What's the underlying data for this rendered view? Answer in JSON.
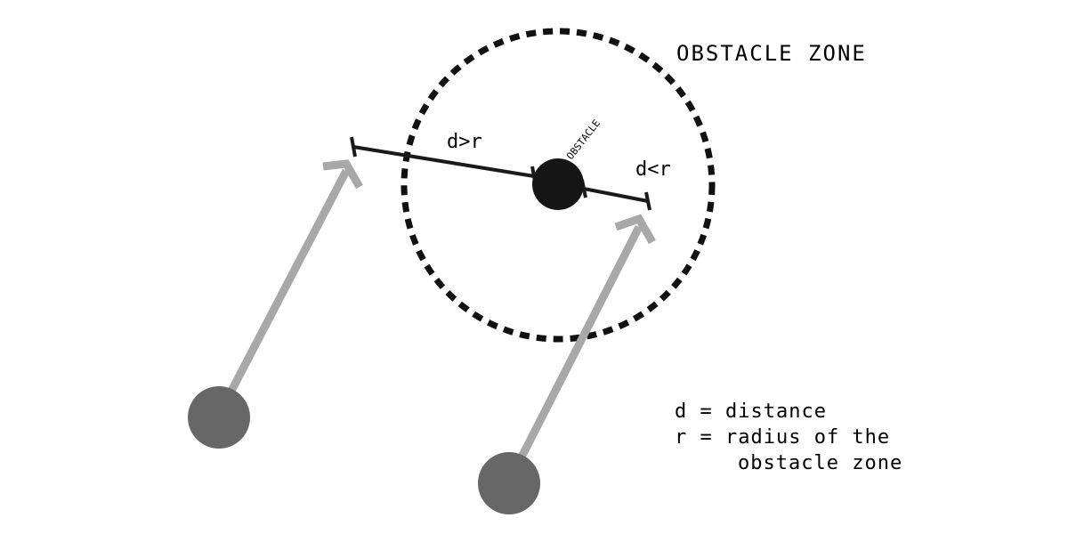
{
  "diagram": {
    "zone_label": "OBSTACLE ZONE",
    "obstacle_label": "OBSTACLE",
    "far_label": "d>r",
    "near_label": "d<r",
    "legend": {
      "line1": "d = distance",
      "line2": "r = radius of the",
      "line3": "obstacle zone"
    }
  },
  "colors": {
    "zone_ring": "#111111",
    "obstacle": "#161616",
    "agent": "#676767",
    "trajectory_arrow": "#a8a8a8",
    "measure_line": "#1a1a1a"
  }
}
